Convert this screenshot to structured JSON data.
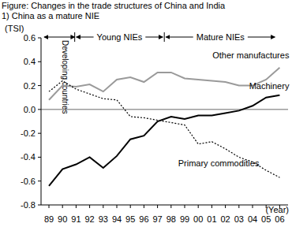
{
  "chart_data": {
    "type": "line",
    "title": "Figure: Changes in the trade structures of China and India",
    "subtitle": "1) China as a mature NIE",
    "y_label": "(TSI)",
    "x_label": "(Year)",
    "annotations": [
      "Developing countries",
      "Young NIEs",
      "Mature NIEs"
    ],
    "categories": [
      "89",
      "90",
      "91",
      "92",
      "93",
      "94",
      "95",
      "96",
      "97",
      "98",
      "99",
      "00",
      "01",
      "02",
      "03",
      "04",
      "05",
      "06"
    ],
    "series": [
      {
        "name": "Other manufactures",
        "color": "#9a9a9a",
        "line_style": "solid",
        "values": [
          0.08,
          0.2,
          0.19,
          0.21,
          0.15,
          0.25,
          0.27,
          0.23,
          0.31,
          0.31,
          0.26,
          0.25,
          0.24,
          0.23,
          0.2,
          0.2,
          0.25,
          0.35
        ]
      },
      {
        "name": "Machinery",
        "color": "#000000",
        "line_style": "solid",
        "values": [
          -0.64,
          -0.5,
          -0.46,
          -0.4,
          -0.49,
          -0.39,
          -0.25,
          -0.22,
          -0.1,
          -0.06,
          -0.08,
          -0.05,
          -0.05,
          -0.03,
          -0.01,
          0.03,
          0.1,
          0.12
        ]
      },
      {
        "name": "Primary commodities",
        "color": "#000000",
        "line_style": "dotted",
        "values": [
          0.15,
          0.24,
          0.17,
          0.13,
          0.09,
          0.08,
          -0.06,
          -0.07,
          -0.09,
          -0.11,
          -0.13,
          -0.29,
          -0.27,
          -0.33,
          -0.4,
          -0.44,
          -0.51,
          -0.57
        ]
      }
    ],
    "ylim": [
      -0.8,
      0.6
    ],
    "yticks": [
      -0.8,
      -0.6,
      -0.4,
      -0.2,
      {
        "value": 0,
        "label": "0.0"
      },
      0.2,
      0.4,
      0.6
    ],
    "grid": false
  }
}
